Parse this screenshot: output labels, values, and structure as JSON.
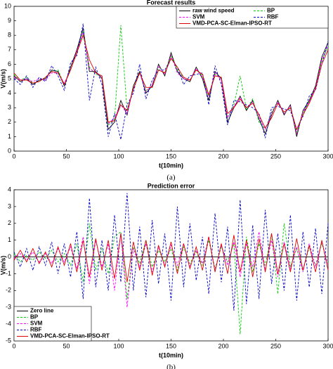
{
  "chart_data": [
    {
      "type": "line",
      "title": "Forecast results",
      "xlabel": "t(10min)",
      "ylabel": "V(m/s)",
      "caption": "(a)",
      "xlim": [
        0,
        300
      ],
      "xticks": [
        0,
        50,
        100,
        150,
        200,
        250,
        300
      ],
      "ylim": [
        0,
        10
      ],
      "yticks": [
        0,
        1,
        2,
        3,
        4,
        5,
        6,
        7,
        8,
        9,
        10
      ],
      "legend": "upper right",
      "x": [
        0,
        6,
        12,
        18,
        24,
        30,
        36,
        42,
        48,
        54,
        60,
        66,
        72,
        78,
        84,
        90,
        96,
        102,
        108,
        114,
        120,
        126,
        132,
        138,
        144,
        150,
        156,
        162,
        168,
        174,
        180,
        186,
        192,
        198,
        204,
        210,
        216,
        222,
        228,
        234,
        240,
        246,
        252,
        258,
        264,
        270,
        276,
        282,
        288,
        294,
        300
      ],
      "series": [
        {
          "name": "raw wind speed",
          "color": "#000000",
          "dashed": false,
          "values": [
            5.2,
            4.8,
            5.0,
            4.6,
            4.9,
            5.0,
            5.6,
            5.5,
            4.5,
            5.8,
            7.0,
            8.5,
            5.5,
            5.5,
            5.0,
            1.5,
            2.0,
            3.5,
            2.5,
            4.5,
            5.5,
            4.0,
            4.5,
            6.0,
            5.2,
            6.8,
            5.5,
            5.0,
            4.8,
            5.8,
            5.0,
            3.5,
            5.5,
            5.0,
            2.0,
            3.0,
            3.8,
            2.8,
            3.5,
            2.2,
            1.2,
            2.5,
            3.5,
            2.5,
            3.2,
            1.0,
            2.8,
            3.5,
            4.5,
            6.5,
            7.5
          ]
        },
        {
          "name": "BP",
          "color": "#00cc00",
          "dashed": true,
          "values": [
            5.3,
            4.9,
            5.1,
            4.7,
            4.8,
            5.1,
            5.5,
            5.6,
            4.6,
            5.6,
            6.8,
            8.3,
            5.8,
            5.3,
            5.2,
            1.8,
            2.2,
            8.7,
            2.8,
            4.3,
            5.4,
            4.2,
            4.4,
            5.8,
            5.4,
            6.6,
            5.6,
            5.1,
            4.9,
            5.6,
            5.2,
            3.8,
            5.3,
            5.1,
            2.3,
            3.2,
            5.2,
            2.9,
            3.6,
            2.0,
            1.5,
            2.7,
            3.4,
            2.6,
            3.0,
            1.3,
            2.6,
            3.4,
            4.3,
            6.3,
            7.2
          ]
        },
        {
          "name": "SVM",
          "color": "#ff00ff",
          "dashed": true,
          "values": [
            5.1,
            4.9,
            5.0,
            4.8,
            5.0,
            4.9,
            5.4,
            5.4,
            4.7,
            5.6,
            6.9,
            8.2,
            5.7,
            5.4,
            5.1,
            1.9,
            2.3,
            3.2,
            2.6,
            4.3,
            5.4,
            4.1,
            4.6,
            5.9,
            5.3,
            6.6,
            5.4,
            5.0,
            4.9,
            5.7,
            5.1,
            3.8,
            5.4,
            4.9,
            2.3,
            3.1,
            3.7,
            3.0,
            3.4,
            2.3,
            1.5,
            2.6,
            3.4,
            2.6,
            3.1,
            1.2,
            2.7,
            3.4,
            4.4,
            6.3,
            7.3
          ]
        },
        {
          "name": "RBF",
          "color": "#0000cc",
          "dashed": true,
          "values": [
            5.0,
            4.6,
            5.2,
            4.4,
            5.1,
            4.8,
            5.9,
            5.2,
            4.2,
            6.1,
            6.6,
            8.8,
            3.5,
            5.8,
            4.6,
            1.0,
            2.6,
            0.8,
            3.2,
            4.0,
            6.0,
            3.6,
            4.9,
            5.6,
            5.6,
            6.4,
            5.8,
            4.6,
            5.2,
            5.3,
            5.4,
            3.2,
            5.9,
            4.6,
            1.8,
            3.5,
            3.4,
            3.2,
            3.0,
            2.6,
            0.9,
            3.0,
            3.1,
            2.9,
            2.8,
            1.5,
            2.4,
            3.8,
            4.2,
            6.0,
            7.6
          ]
        },
        {
          "name": "VMD-PCA-SC-Elman-IPSO-RT",
          "color": "#e00000",
          "dashed": false,
          "values": [
            5.4,
            4.9,
            4.9,
            4.7,
            4.8,
            5.1,
            5.5,
            5.4,
            4.6,
            5.6,
            6.8,
            8.0,
            6.3,
            5.4,
            5.2,
            2.0,
            2.1,
            3.2,
            2.8,
            4.3,
            5.4,
            4.4,
            4.4,
            5.6,
            5.4,
            6.4,
            5.8,
            5.1,
            4.9,
            5.6,
            5.3,
            3.9,
            5.2,
            5.1,
            2.6,
            3.0,
            3.6,
            3.0,
            3.3,
            2.5,
            1.6,
            2.3,
            3.3,
            2.7,
            3.0,
            1.5,
            2.5,
            3.3,
            4.3,
            6.0,
            7.0
          ]
        }
      ]
    },
    {
      "type": "line",
      "title": "Prediction error",
      "xlabel": "t(10min)",
      "ylabel": "V(m/s)",
      "caption": "(b)",
      "xlim": [
        0,
        300
      ],
      "xticks": [
        0,
        50,
        100,
        150,
        200,
        250,
        300
      ],
      "ylim": [
        -5,
        4
      ],
      "yticks": [
        -5,
        -4,
        -3,
        -2,
        -1,
        0,
        1,
        2,
        3,
        4
      ],
      "legend": "lower left",
      "x": [
        0,
        6,
        12,
        18,
        24,
        30,
        36,
        42,
        48,
        54,
        60,
        66,
        72,
        78,
        84,
        90,
        96,
        102,
        108,
        114,
        120,
        126,
        132,
        138,
        144,
        150,
        156,
        162,
        168,
        174,
        180,
        186,
        192,
        198,
        204,
        210,
        216,
        222,
        228,
        234,
        240,
        246,
        252,
        258,
        264,
        270,
        276,
        282,
        288,
        294,
        300
      ],
      "series": [
        {
          "name": "Zero line",
          "color": "#000000",
          "dashed": false,
          "values": [
            0,
            0,
            0,
            0,
            0,
            0,
            0,
            0,
            0,
            0,
            0,
            0,
            0,
            0,
            0,
            0,
            0,
            0,
            0,
            0,
            0,
            0,
            0,
            0,
            0,
            0,
            0,
            0,
            0,
            0,
            0,
            0,
            0,
            0,
            0,
            0,
            0,
            0,
            0,
            0,
            0,
            0,
            0,
            0,
            0,
            0,
            0,
            0,
            0,
            0,
            0
          ]
        },
        {
          "name": "BP",
          "color": "#00cc00",
          "dashed": true,
          "values": [
            0.2,
            -0.3,
            0.1,
            -0.2,
            0.3,
            -0.1,
            0.4,
            -0.3,
            0.2,
            -0.5,
            0.8,
            -1.5,
            2.0,
            -0.8,
            0.5,
            -1.0,
            1.2,
            1.5,
            -2.5,
            0.6,
            -0.4,
            1.0,
            -0.6,
            0.4,
            -0.3,
            0.5,
            -0.8,
            0.6,
            -0.4,
            0.3,
            -0.5,
            1.0,
            -0.7,
            0.6,
            -0.3,
            0.8,
            -4.6,
            1.2,
            -0.9,
            0.8,
            -0.5,
            1.4,
            -2.2,
            2.0,
            -0.6,
            0.5,
            -0.8,
            0.6,
            -0.5,
            0.8,
            -0.4
          ]
        },
        {
          "name": "SVM",
          "color": "#ff00ff",
          "dashed": true,
          "values": [
            -0.1,
            0.2,
            -0.2,
            0.3,
            -0.3,
            0.2,
            -0.4,
            0.5,
            -0.3,
            0.6,
            -0.7,
            1.2,
            -1.6,
            1.0,
            -0.6,
            0.8,
            -2.0,
            1.4,
            -3.0,
            0.5,
            -0.6,
            0.8,
            -0.9,
            0.6,
            -0.5,
            0.7,
            -0.5,
            0.8,
            -0.6,
            0.4,
            -0.4,
            1.2,
            -0.8,
            0.7,
            -0.5,
            0.9,
            -1.2,
            0.8,
            -0.6,
            1.5,
            -0.8,
            1.0,
            -1.2,
            0.9,
            -0.7,
            0.6,
            -0.9,
            0.8,
            -0.6,
            0.9,
            -0.5
          ]
        },
        {
          "name": "RBF",
          "color": "#0000cc",
          "dashed": true,
          "values": [
            0.3,
            -0.6,
            0.5,
            -0.8,
            0.6,
            -0.5,
            0.9,
            -1.0,
            0.8,
            -1.2,
            1.5,
            -2.5,
            3.5,
            -1.8,
            1.0,
            -2.0,
            2.5,
            -1.5,
            3.8,
            -2.0,
            1.8,
            -2.4,
            2.2,
            -1.6,
            1.4,
            -2.6,
            3.0,
            -1.8,
            2.0,
            -1.4,
            1.2,
            -2.2,
            2.6,
            -1.5,
            1.8,
            -3.2,
            3.4,
            -2.8,
            1.9,
            -2.5,
            2.8,
            -1.6,
            1.4,
            -2.0,
            2.5,
            -2.6,
            1.5,
            -1.8,
            1.7,
            -2.2,
            2.0
          ]
        },
        {
          "name": "VMD-PCA-SC-Elman-IPSO-RT",
          "color": "#e00000",
          "dashed": false,
          "values": [
            -0.2,
            0.4,
            -0.3,
            0.5,
            -0.4,
            0.3,
            -0.6,
            0.6,
            -0.5,
            0.8,
            -0.9,
            1.0,
            -1.2,
            1.1,
            -0.8,
            1.0,
            -1.3,
            1.4,
            -1.5,
            0.9,
            -0.8,
            1.0,
            -1.1,
            0.7,
            -0.6,
            0.9,
            -1.0,
            0.8,
            -0.7,
            0.6,
            -0.8,
            1.2,
            -0.9,
            0.8,
            -1.0,
            1.3,
            -0.9,
            1.0,
            -1.2,
            1.1,
            -0.9,
            1.4,
            -1.0,
            0.8,
            -0.9,
            1.1,
            -0.8,
            0.7,
            -0.9,
            1.0,
            -0.8
          ]
        }
      ]
    }
  ]
}
